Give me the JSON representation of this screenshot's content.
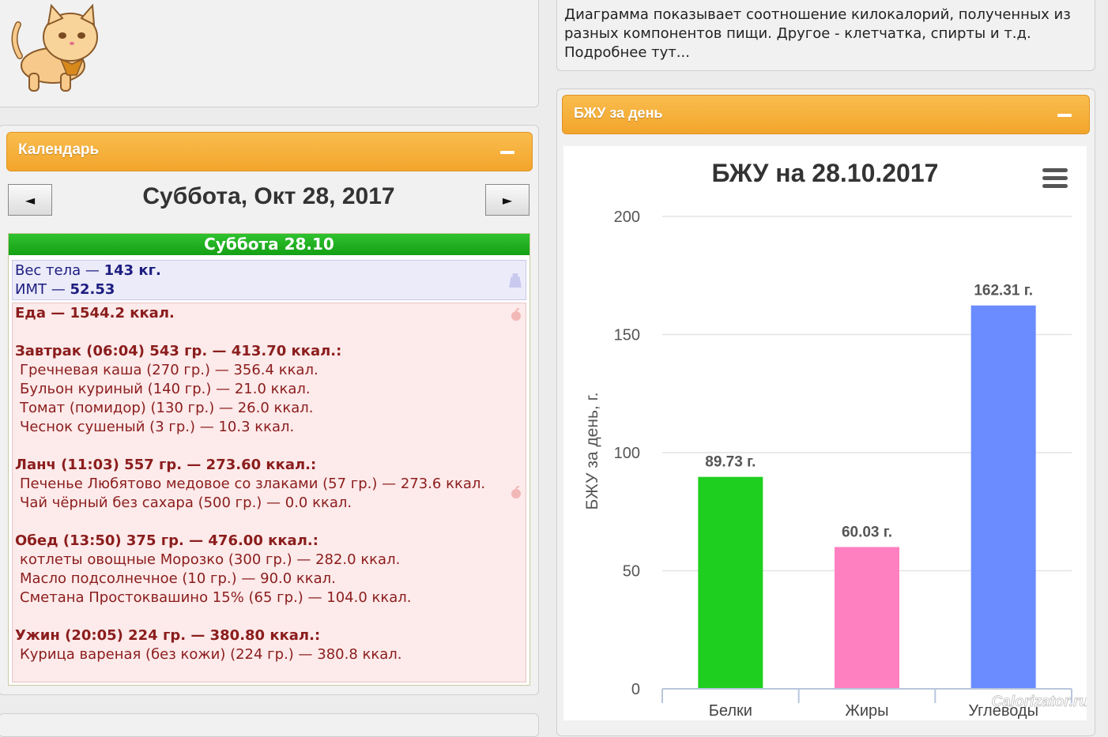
{
  "info_text": {
    "line1": "Диаграмма показывает соотношение килокалорий, полученных из",
    "line2": "разных компонентов пищи. Другое - клетчатка, спирты и т.д.",
    "line3": "Подробнее тут..."
  },
  "calendar": {
    "title": "Календарь",
    "date": "Суббота, Окт 28, 2017",
    "prev_label": "◄",
    "next_label": "►",
    "day_header": "Суббота 28.10",
    "weight": {
      "label": "Вес тела — ",
      "value": "143 кг."
    },
    "bmi": {
      "label": "ИМТ — ",
      "value": "52.53"
    },
    "food_total": "Еда — 1544.2 ккал.",
    "meals": [
      {
        "title": "Завтрак (06:04) 543 гр. — 413.70 ккал.:",
        "items": [
          "Гречневая каша (270 гр.) — 356.4 ккал.",
          "Бульон куриный (140 гр.) — 21.0 ккал.",
          "Томат (помидор) (130 гр.) — 26.0 ккал.",
          "Чеснок сушеный (3 гр.) — 10.3 ккал."
        ]
      },
      {
        "title": "Ланч (11:03) 557 гр. — 273.60 ккал.:",
        "items": [
          "Печенье Любятово медовое со злаками (57 гр.) — 273.6 ккал.",
          "Чай чёрный без сахара (500 гр.) — 0.0 ккал."
        ]
      },
      {
        "title": "Обед (13:50) 375 гр. — 476.00 ккал.:",
        "items": [
          "котлеты овощные Морозко (300 гр.) — 282.0 ккал.",
          "Масло подсолнечное (10 гр.) — 90.0 ккал.",
          "Сметана Простоквашино 15% (65 гр.) — 104.0 ккал."
        ]
      },
      {
        "title": "Ужин (20:05) 224 гр. — 380.80 ккал.:",
        "items": [
          "Курица вареная (без кожи) (224 гр.) — 380.8 ккал."
        ]
      }
    ]
  },
  "bju_panel": {
    "title": "БЖУ за день"
  },
  "watermark": "Calorizator.ru",
  "chart_data": {
    "type": "bar",
    "title": "БЖУ на 28.10.2017",
    "ylabel": "БЖУ за день, г.",
    "xlabel": "",
    "categories": [
      "Белки",
      "Жиры",
      "Углеводы"
    ],
    "values": [
      89.73,
      60.03,
      162.31
    ],
    "data_labels": [
      "89.73 г.",
      "60.03 г.",
      "162.31 г."
    ],
    "colors": [
      "#1fcf1f",
      "#ff80c0",
      "#6b8cff"
    ],
    "ylim": [
      0,
      200
    ],
    "yticks": [
      0,
      50,
      100,
      150,
      200
    ],
    "grid": true,
    "legend": "none"
  }
}
